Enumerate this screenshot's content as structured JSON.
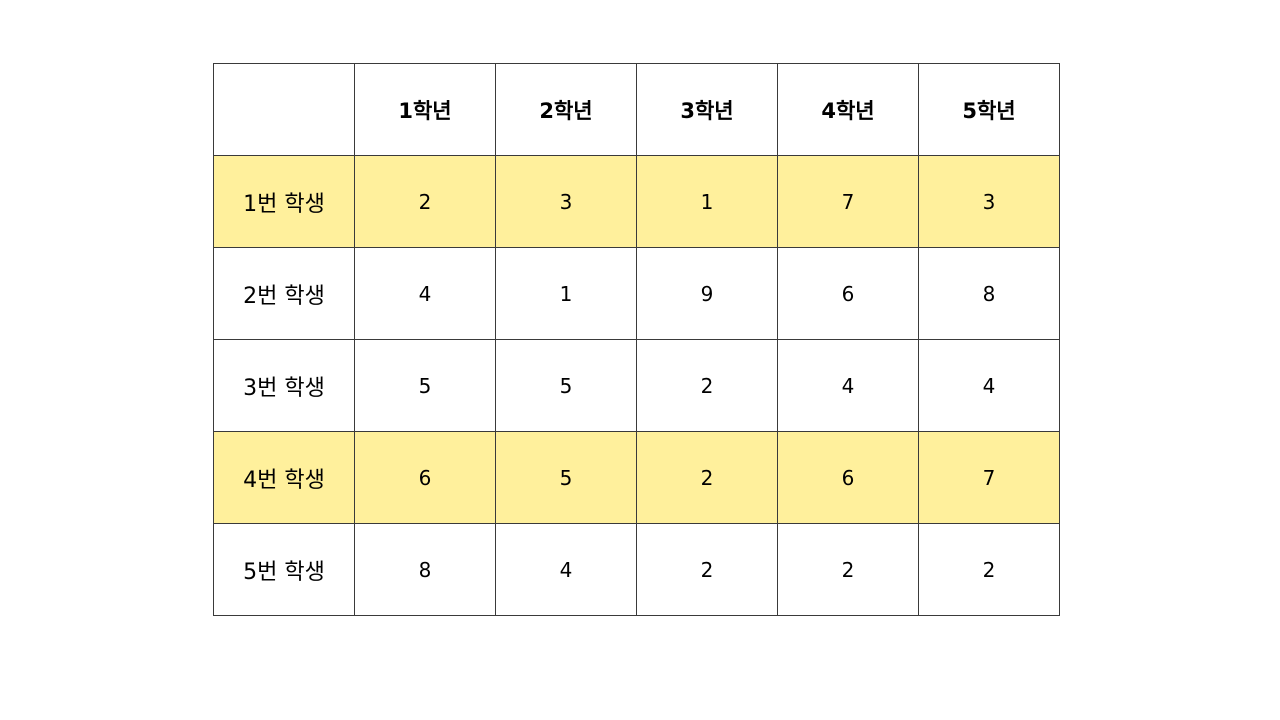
{
  "table": {
    "corner": "",
    "columns": [
      "1학년",
      "2학년",
      "3학년",
      "4학년",
      "5학년"
    ],
    "highlight_color": "#fff09c",
    "rows": [
      {
        "label": "1번 학생",
        "values": [
          "2",
          "3",
          "1",
          "7",
          "3"
        ],
        "highlighted": true
      },
      {
        "label": "2번 학생",
        "values": [
          "4",
          "1",
          "9",
          "6",
          "8"
        ],
        "highlighted": false
      },
      {
        "label": "3번 학생",
        "values": [
          "5",
          "5",
          "2",
          "4",
          "4"
        ],
        "highlighted": false
      },
      {
        "label": "4번 학생",
        "values": [
          "6",
          "5",
          "2",
          "6",
          "7"
        ],
        "highlighted": true
      },
      {
        "label": "5번 학생",
        "values": [
          "8",
          "4",
          "2",
          "2",
          "2"
        ],
        "highlighted": false
      }
    ]
  }
}
